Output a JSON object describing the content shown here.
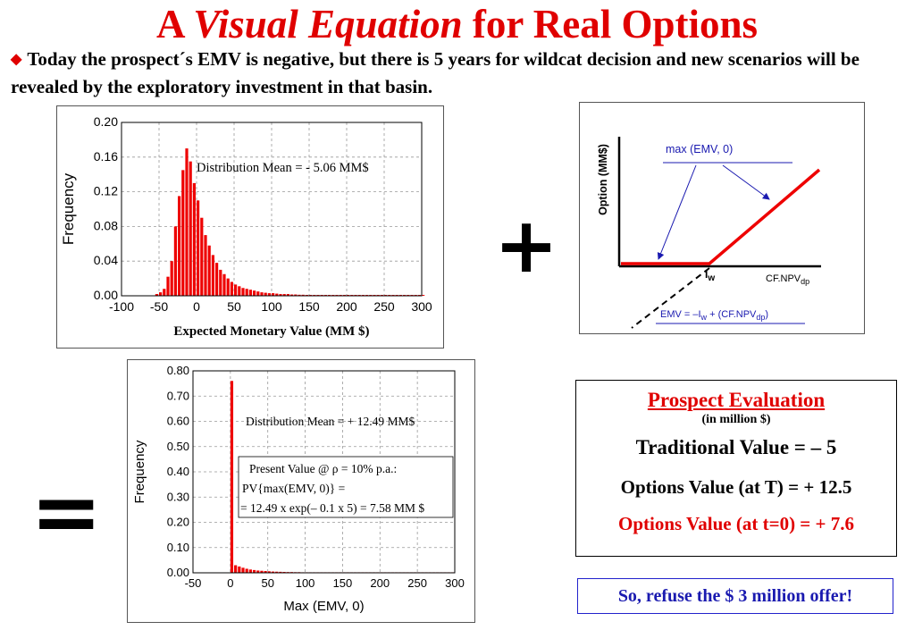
{
  "title": {
    "part1": "A ",
    "italic": "Visual Equation",
    "part2": " for Real Options"
  },
  "bullet": "Today the prospect´s EMV is negative, but there is 5 years for wildcat decision and new scenarios will be revealed by the exploratory investment in that basin.",
  "operators": {
    "plus": "+",
    "equals": "="
  },
  "chart_data": [
    {
      "type": "bar",
      "xlabel": "Expected Monetary Value (MM $)",
      "ylabel": "Frequency",
      "xlim": [
        -100,
        300
      ],
      "ylim": [
        0,
        0.2
      ],
      "xticks": [
        "-100",
        "-50",
        "0",
        "50",
        "100",
        "150",
        "200",
        "250",
        "300"
      ],
      "yticks": [
        "0.00",
        "0.04",
        "0.08",
        "0.12",
        "0.16",
        "0.20"
      ],
      "grid": true,
      "annotation": "Distribution Mean = - 5.06 MM$",
      "bar_width": 5,
      "x": [
        -55,
        -50,
        -45,
        -40,
        -35,
        -30,
        -25,
        -20,
        -15,
        -10,
        -5,
        0,
        5,
        10,
        15,
        20,
        25,
        30,
        35,
        40,
        45,
        50,
        55,
        60,
        65,
        70,
        75,
        80,
        85,
        90,
        95,
        100,
        105,
        110,
        115,
        120,
        125,
        130,
        135,
        140,
        145,
        150,
        155,
        160,
        165,
        170,
        175,
        180,
        185,
        190,
        195,
        200,
        205,
        210,
        215,
        220,
        225,
        230,
        235,
        240,
        245,
        250,
        255,
        260,
        265,
        270,
        275,
        280,
        285,
        290,
        295,
        300
      ],
      "values": [
        0.002,
        0.004,
        0.008,
        0.022,
        0.04,
        0.08,
        0.115,
        0.145,
        0.17,
        0.155,
        0.13,
        0.11,
        0.09,
        0.07,
        0.058,
        0.047,
        0.038,
        0.03,
        0.025,
        0.02,
        0.016,
        0.013,
        0.011,
        0.009,
        0.008,
        0.007,
        0.006,
        0.005,
        0.004,
        0.0035,
        0.003,
        0.003,
        0.0025,
        0.002,
        0.002,
        0.002,
        0.0015,
        0.0015,
        0.0012,
        0.0012,
        0.001,
        0.001,
        0.001,
        0.001,
        0.001,
        0.001,
        0.001,
        0.001,
        0.001,
        0.001,
        0.001,
        0.001,
        0.001,
        0.001,
        0.001,
        0.001,
        0.001,
        0.001,
        0.001,
        0.001,
        0.001,
        0.001,
        0.001,
        0.001,
        0.001,
        0.001,
        0.001,
        0.001,
        0.001,
        0.001,
        0.001,
        0.001
      ]
    },
    {
      "type": "line",
      "ylabel": "Option (MM$)",
      "x_axis_label": "CF.NPV",
      "x_axis_label_sub": "dp",
      "threshold_label": "I",
      "threshold_label_sub": "w",
      "max_label": "max (EMV, 0)",
      "emv_label_a": "EMV = –I",
      "emv_label_sub1": "w",
      "emv_label_b": " + (CF.NPV",
      "emv_label_sub2": "dp",
      "emv_label_c": ")"
    },
    {
      "type": "bar",
      "xlabel": "Max (EMV, 0)",
      "ylabel": "Frequency",
      "xlim": [
        -50,
        300
      ],
      "ylim": [
        0,
        0.8
      ],
      "xticks": [
        "-50",
        "0",
        "50",
        "100",
        "150",
        "200",
        "250",
        "300"
      ],
      "yticks": [
        "0.00",
        "0.10",
        "0.20",
        "0.30",
        "0.40",
        "0.50",
        "0.60",
        "0.70",
        "0.80"
      ],
      "grid": true,
      "annotation": "Distribution Mean = + 12.49 MM$",
      "pv_line1": "Present Value @ ρ = 10% p.a.:",
      "pv_line2": "PV{max(EMV, 0)} =",
      "pv_line3": "=  12.49 x exp(– 0.1 x 5) = 7.58 MM $",
      "bar_width": 5,
      "x": [
        0,
        5,
        10,
        15,
        20,
        25,
        30,
        35,
        40,
        45,
        50,
        55,
        60,
        65,
        70,
        75,
        80,
        85,
        90,
        95,
        100,
        105,
        110,
        115,
        120,
        125,
        130,
        135,
        140,
        145,
        150,
        155,
        160,
        165,
        170,
        175,
        180,
        185,
        190,
        195,
        200,
        205,
        210,
        215,
        220,
        225,
        230,
        235,
        240,
        245,
        250,
        255,
        260,
        265,
        270,
        275,
        280,
        285,
        290,
        295
      ],
      "values": [
        0.76,
        0.03,
        0.025,
        0.02,
        0.016,
        0.013,
        0.011,
        0.009,
        0.008,
        0.007,
        0.006,
        0.005,
        0.0045,
        0.004,
        0.0035,
        0.003,
        0.003,
        0.0025,
        0.0025,
        0.002,
        0.002,
        0.002,
        0.002,
        0.002,
        0.002,
        0.002,
        0.002,
        0.002,
        0.002,
        0.002,
        0.002,
        0.002,
        0.002,
        0.002,
        0.002,
        0.002,
        0.002,
        0.002,
        0.002,
        0.002,
        0.002,
        0.002,
        0.002,
        0.002,
        0.002,
        0.002,
        0.002,
        0.002,
        0.002,
        0.002,
        0.002,
        0.002,
        0.002,
        0.002,
        0.002,
        0.002,
        0.002,
        0.002,
        0.002,
        0.002
      ]
    }
  ],
  "evaluation": {
    "title": "Prospect Evaluation",
    "subtitle": "(in million $)",
    "traditional": "Traditional Value = – 5",
    "options_t": "Options Value (at T) =  + 12.5",
    "options_t0": "Options Value (at t=0) = + 7.6"
  },
  "conclusion": "So, refuse the $ 3 million offer!",
  "colors": {
    "title": "#e00000",
    "bars": "#ee0000",
    "payoff": "#ee0000",
    "arrows": "#1a1ab0",
    "conclusion": "#1a1ab0"
  }
}
